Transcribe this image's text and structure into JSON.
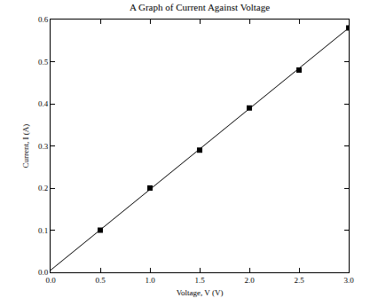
{
  "chart_data": {
    "type": "scatter",
    "title": "A Graph of Current Against Voltage",
    "x_label": "Voltage, V (V)",
    "y_label": "Current, I (A)",
    "series": [
      {
        "type": "scatter",
        "marker": "square",
        "color": "#000000",
        "x": [
          0.5,
          1.0,
          1.5,
          2.0,
          2.5,
          3.0
        ],
        "values": [
          0.1,
          0.2,
          0.29,
          0.39,
          0.48,
          0.58
        ]
      },
      {
        "type": "line",
        "line_style": "solid",
        "color": "#000000",
        "x": [
          0,
          3.0
        ],
        "values": [
          0.005,
          0.58
        ]
      }
    ],
    "xlim": [
      0,
      3.0
    ],
    "ylim": [
      0,
      0.6
    ],
    "xticks": [
      {
        "value": 0,
        "label": "0.0"
      },
      {
        "value": 0.5,
        "label": "0.5"
      },
      {
        "value": 1,
        "label": "1.0"
      },
      {
        "value": 1.5,
        "label": "1.5"
      },
      {
        "value": 2,
        "label": "2.0"
      },
      {
        "value": 2.5,
        "label": "2.5"
      },
      {
        "value": 3,
        "label": "3.0"
      }
    ],
    "yticks": [
      {
        "value": 0,
        "label": "0.0"
      },
      {
        "value": 0.1,
        "label": "0.1"
      },
      {
        "value": 0.2,
        "label": "0.2"
      },
      {
        "value": 0.3,
        "label": "0.3"
      },
      {
        "value": 0.4,
        "label": "0.4"
      },
      {
        "value": 0.5,
        "label": "0.5"
      },
      {
        "value": 0.6,
        "label": "0.6"
      }
    ],
    "grid": false
  }
}
